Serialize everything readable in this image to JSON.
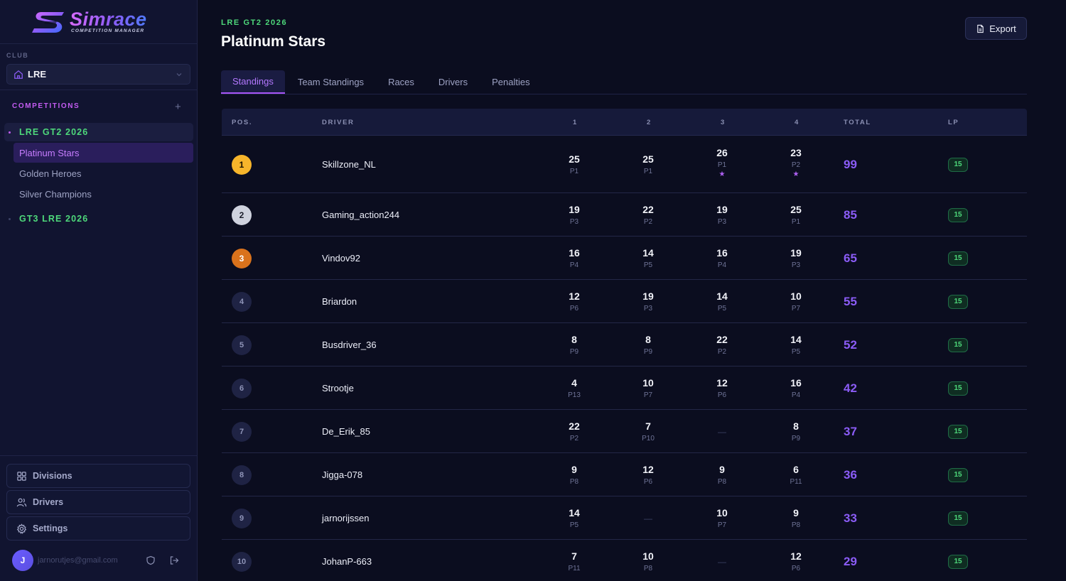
{
  "brand": {
    "title": "Simrace",
    "subtitle": "COMPETITION MANAGER"
  },
  "sidebar": {
    "club_label": "CLUB",
    "club_value": "LRE",
    "competitions_label": "COMPETITIONS",
    "groups": [
      {
        "label": "LRE GT2 2026",
        "expanded": true,
        "items": [
          "Platinum Stars",
          "Golden Heroes",
          "Silver Champions"
        ]
      },
      {
        "label": "GT3 LRE 2026",
        "expanded": false,
        "items": []
      }
    ],
    "buttons": {
      "divisions": "Divisions",
      "drivers": "Drivers",
      "settings": "Settings"
    },
    "user": {
      "initial": "J",
      "email": "jarnorutjes@gmail.com"
    }
  },
  "header": {
    "season": "LRE GT2 2026",
    "title": "Platinum Stars",
    "export_label": "Export"
  },
  "tabs": [
    "Standings",
    "Team Standings",
    "Races",
    "Drivers",
    "Penalties"
  ],
  "table": {
    "columns": {
      "pos": "POS.",
      "driver": "DRIVER",
      "r1": "1",
      "r2": "2",
      "r3": "3",
      "r4": "4",
      "total": "TOTAL",
      "lp": "LP"
    },
    "rows": [
      {
        "pos": "1",
        "driver": "Skillzone_NL",
        "races": [
          {
            "pts": "25",
            "place": "P1",
            "star": false
          },
          {
            "pts": "25",
            "place": "P1",
            "star": false
          },
          {
            "pts": "26",
            "place": "P1",
            "star": true
          },
          {
            "pts": "23",
            "place": "P2",
            "star": true
          }
        ],
        "total": "99",
        "lp": "15"
      },
      {
        "pos": "2",
        "driver": "Gaming_action244",
        "races": [
          {
            "pts": "19",
            "place": "P3"
          },
          {
            "pts": "22",
            "place": "P2"
          },
          {
            "pts": "19",
            "place": "P3"
          },
          {
            "pts": "25",
            "place": "P1"
          }
        ],
        "total": "85",
        "lp": "15"
      },
      {
        "pos": "3",
        "driver": "Vindov92",
        "races": [
          {
            "pts": "16",
            "place": "P4"
          },
          {
            "pts": "14",
            "place": "P5"
          },
          {
            "pts": "16",
            "place": "P4"
          },
          {
            "pts": "19",
            "place": "P3"
          }
        ],
        "total": "65",
        "lp": "15"
      },
      {
        "pos": "4",
        "driver": "Briardon",
        "races": [
          {
            "pts": "12",
            "place": "P6"
          },
          {
            "pts": "19",
            "place": "P3"
          },
          {
            "pts": "14",
            "place": "P5"
          },
          {
            "pts": "10",
            "place": "P7"
          }
        ],
        "total": "55",
        "lp": "15"
      },
      {
        "pos": "5",
        "driver": "Busdriver_36",
        "races": [
          {
            "pts": "8",
            "place": "P9"
          },
          {
            "pts": "8",
            "place": "P9"
          },
          {
            "pts": "22",
            "place": "P2"
          },
          {
            "pts": "14",
            "place": "P5"
          }
        ],
        "total": "52",
        "lp": "15"
      },
      {
        "pos": "6",
        "driver": "Strootje",
        "races": [
          {
            "pts": "4",
            "place": "P13"
          },
          {
            "pts": "10",
            "place": "P7"
          },
          {
            "pts": "12",
            "place": "P6"
          },
          {
            "pts": "16",
            "place": "P4"
          }
        ],
        "total": "42",
        "lp": "15"
      },
      {
        "pos": "7",
        "driver": "De_Erik_85",
        "races": [
          {
            "pts": "22",
            "place": "P2"
          },
          {
            "pts": "7",
            "place": "P10"
          },
          null,
          {
            "pts": "8",
            "place": "P9"
          }
        ],
        "total": "37",
        "lp": "15"
      },
      {
        "pos": "8",
        "driver": "Jigga-078",
        "races": [
          {
            "pts": "9",
            "place": "P8"
          },
          {
            "pts": "12",
            "place": "P6"
          },
          {
            "pts": "9",
            "place": "P8"
          },
          {
            "pts": "6",
            "place": "P11"
          }
        ],
        "total": "36",
        "lp": "15"
      },
      {
        "pos": "9",
        "driver": "jarnorijssen",
        "races": [
          {
            "pts": "14",
            "place": "P5"
          },
          null,
          {
            "pts": "10",
            "place": "P7"
          },
          {
            "pts": "9",
            "place": "P8"
          }
        ],
        "total": "33",
        "lp": "15"
      },
      {
        "pos": "10",
        "driver": "JohanP-663",
        "races": [
          {
            "pts": "7",
            "place": "P11"
          },
          {
            "pts": "10",
            "place": "P8"
          },
          null,
          {
            "pts": "12",
            "place": "P6"
          }
        ],
        "total": "29",
        "lp": "15"
      }
    ],
    "dash": "—",
    "star": "★"
  },
  "colors": {
    "accent": "#a855f7",
    "green": "#4ed97b",
    "gold": "#f7b52b",
    "silver": "#cfd2de",
    "bronze": "#d9721c"
  }
}
